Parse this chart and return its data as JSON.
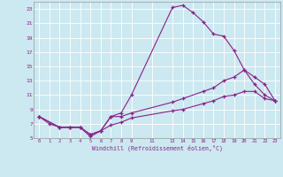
{
  "xlabel": "Windchill (Refroidissement éolien,°C)",
  "bg_color": "#cce8f0",
  "line_color": "#882288",
  "xlim": [
    -0.5,
    23.5
  ],
  "ylim": [
    5,
    24
  ],
  "xtick_vals": [
    0,
    1,
    2,
    3,
    4,
    5,
    6,
    7,
    8,
    9,
    11,
    13,
    14,
    15,
    16,
    17,
    18,
    19,
    20,
    21,
    22,
    23
  ],
  "ytick_vals": [
    5,
    7,
    9,
    11,
    13,
    15,
    17,
    19,
    21,
    23
  ],
  "grid_color": "#ffffff",
  "lines": [
    {
      "x": [
        0,
        1,
        2,
        3,
        4,
        5,
        6,
        7,
        8,
        9,
        13,
        14,
        15,
        16,
        17,
        18,
        19,
        20,
        21,
        22,
        23
      ],
      "y": [
        8,
        7,
        6.5,
        6.5,
        6.5,
        5.2,
        6,
        8,
        8.5,
        11,
        23.2,
        23.5,
        22.5,
        21.2,
        19.5,
        19.2,
        17.2,
        14.5,
        12.5,
        11,
        10.2
      ]
    },
    {
      "x": [
        0,
        2,
        3,
        4,
        5,
        6,
        7,
        8,
        9,
        13,
        14,
        16,
        17,
        18,
        19,
        20,
        21,
        22,
        23
      ],
      "y": [
        8,
        6.5,
        6.5,
        6.5,
        5.5,
        6,
        8,
        8,
        8.5,
        10,
        10.5,
        11.5,
        12,
        13,
        13.5,
        14.5,
        13.5,
        12.5,
        10.2
      ]
    },
    {
      "x": [
        0,
        2,
        3,
        4,
        5,
        6,
        7,
        8,
        9,
        13,
        14,
        16,
        17,
        18,
        19,
        20,
        21,
        22,
        23
      ],
      "y": [
        8,
        6.5,
        6.5,
        6.5,
        5.5,
        6,
        6.8,
        7.2,
        7.8,
        8.8,
        9,
        9.8,
        10.2,
        10.8,
        11,
        11.5,
        11.5,
        10.5,
        10.2
      ]
    }
  ]
}
